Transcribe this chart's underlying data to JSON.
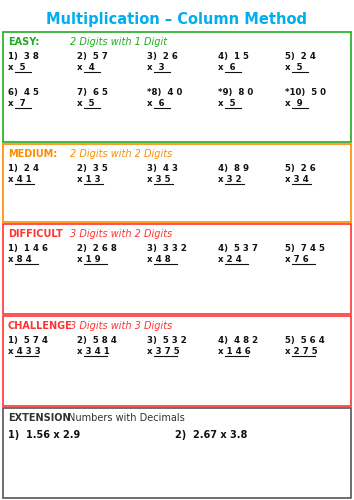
{
  "title": "Multiplication – Column Method",
  "title_color": "#00AEEF",
  "background": "#ffffff",
  "sections": [
    {
      "label": "EASY:",
      "label_color": "#22AA22",
      "subtitle": "2 Digits with 1 Digit",
      "subtitle_color": "#22AA22",
      "box_color": "#22AA22",
      "subtitle_italic": true,
      "rows": [
        [
          {
            "num": "1)  3 8",
            "mult": "x  5"
          },
          {
            "num": "2)  5 7",
            "mult": "x  4"
          },
          {
            "num": "3)  2 6",
            "mult": "x  3"
          },
          {
            "num": "4)  1 5",
            "mult": "x  6"
          },
          {
            "num": "5)  2 4",
            "mult": "x  5"
          }
        ],
        [
          {
            "num": "6)  4 5",
            "mult": "x  7"
          },
          {
            "num": "7)  6 5",
            "mult": "x  5"
          },
          {
            "num": "*8)  4 0",
            "mult": "x  6"
          },
          {
            "num": "*9)  8 0",
            "mult": "x  5"
          },
          {
            "num": "*10)  5 0",
            "mult": "x  9"
          }
        ]
      ]
    },
    {
      "label": "MEDIUM:",
      "label_color": "#FF8C00",
      "subtitle": "2 Digits with 2 Digits",
      "subtitle_color": "#FF8C00",
      "box_color": "#FF8C00",
      "subtitle_italic": true,
      "rows": [
        [
          {
            "num": "1)  2 4",
            "mult": "x 4 1"
          },
          {
            "num": "2)  3 5",
            "mult": "x 1 3"
          },
          {
            "num": "3)  4 3",
            "mult": "x 3 5"
          },
          {
            "num": "4)  8 9",
            "mult": "x 3 2"
          },
          {
            "num": "5)  2 6",
            "mult": "x 3 4"
          }
        ]
      ]
    },
    {
      "label": "DIFFICULT",
      "label_color": "#FF3333",
      "subtitle": "3 Digits with 2 Digits",
      "subtitle_color": "#FF3333",
      "box_color": "#FF3333",
      "subtitle_italic": true,
      "rows": [
        [
          {
            "num": "1)  1 4 6",
            "mult": "x 8 4"
          },
          {
            "num": "2)  2 6 8",
            "mult": "x 1 9"
          },
          {
            "num": "3)  3 3 2",
            "mult": "x 4 8"
          },
          {
            "num": "4)  5 3 7",
            "mult": "x 2 4"
          },
          {
            "num": "5)  7 4 5",
            "mult": "x 7 6"
          }
        ]
      ]
    },
    {
      "label": "CHALLENGE",
      "label_color": "#FF3333",
      "subtitle": "3 Digits with 3 Digits",
      "subtitle_color": "#FF3333",
      "box_color": "#FF3333",
      "subtitle_italic": true,
      "rows": [
        [
          {
            "num": "1)  5 7 4",
            "mult": "x 4 3 3"
          },
          {
            "num": "2)  5 8 4",
            "mult": "x 3 4 1"
          },
          {
            "num": "3)  5 3 2",
            "mult": "x 3 7 5"
          },
          {
            "num": "4)  4 8 2",
            "mult": "x 1 4 6"
          },
          {
            "num": "5)  5 6 4",
            "mult": "x 2 7 5"
          }
        ]
      ]
    },
    {
      "label": "EXTENSION",
      "label_color": "#333333",
      "subtitle": "Numbers with Decimals",
      "subtitle_color": "#333333",
      "box_color": "#555555",
      "subtitle_italic": false,
      "rows": [
        [
          {
            "num": "1)  1.56 x 2.9",
            "mult": ""
          },
          {
            "num": "2)  2.67 x 3.8",
            "mult": ""
          }
        ]
      ]
    }
  ]
}
